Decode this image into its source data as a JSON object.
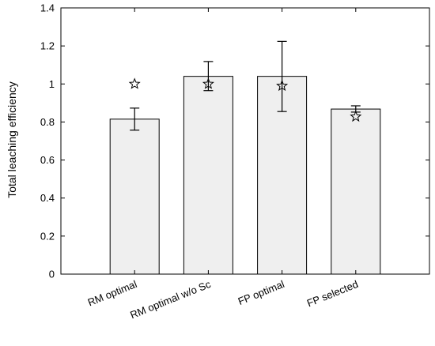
{
  "chart_data": {
    "type": "bar",
    "title": "",
    "xlabel": "",
    "ylabel": "Total leaching efficiency",
    "categories": [
      "RM optimal",
      "RM optimal w/o Sc",
      "FP optimal",
      "FP selected"
    ],
    "values": [
      0.815,
      1.04,
      1.04,
      0.868
    ],
    "error_bars": [
      {
        "low": 0.757,
        "high": 0.873
      },
      {
        "low": 0.965,
        "high": 1.118
      },
      {
        "low": 0.855,
        "high": 1.224
      },
      {
        "low": 0.852,
        "high": 0.885
      }
    ],
    "markers": {
      "symbol": "star",
      "values": [
        1.0,
        1.0,
        0.99,
        0.828
      ]
    },
    "ylim": [
      0,
      1.4
    ],
    "yticks": [
      "0",
      "0.2",
      "0.4",
      "0.6",
      "0.8",
      "1",
      "1.2",
      "1.4"
    ],
    "grid": false,
    "colors": {
      "bar_fill": "#efefef",
      "bar_stroke": "#000000",
      "axis": "#000000"
    }
  }
}
